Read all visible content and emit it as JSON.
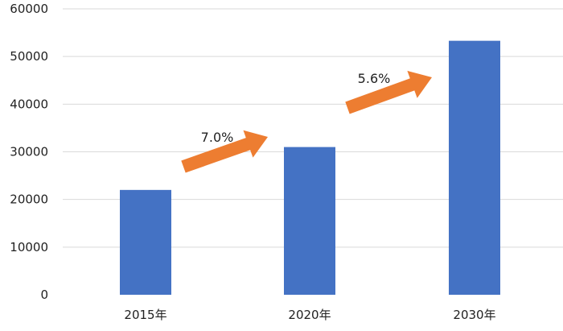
{
  "chart_data": {
    "type": "bar",
    "categories": [
      "2015年",
      "2020年",
      "2030年"
    ],
    "values": [
      22000,
      31000,
      53300
    ],
    "ylim": [
      0,
      60000
    ],
    "yticks": [
      0,
      10000,
      20000,
      30000,
      40000,
      50000,
      60000
    ],
    "ytick_labels": [
      "0",
      "10000",
      "20000",
      "30000",
      "40000",
      "50000",
      "60000"
    ],
    "grid": true,
    "bar_color": "#4472c4",
    "annotations": [
      {
        "text": "7.0%",
        "from_category": "2015年",
        "to_category": "2020年",
        "arrow_color": "#ed7d31"
      },
      {
        "text": "5.6%",
        "from_category": "2020年",
        "to_category": "2030年",
        "arrow_color": "#ed7d31"
      }
    ]
  }
}
